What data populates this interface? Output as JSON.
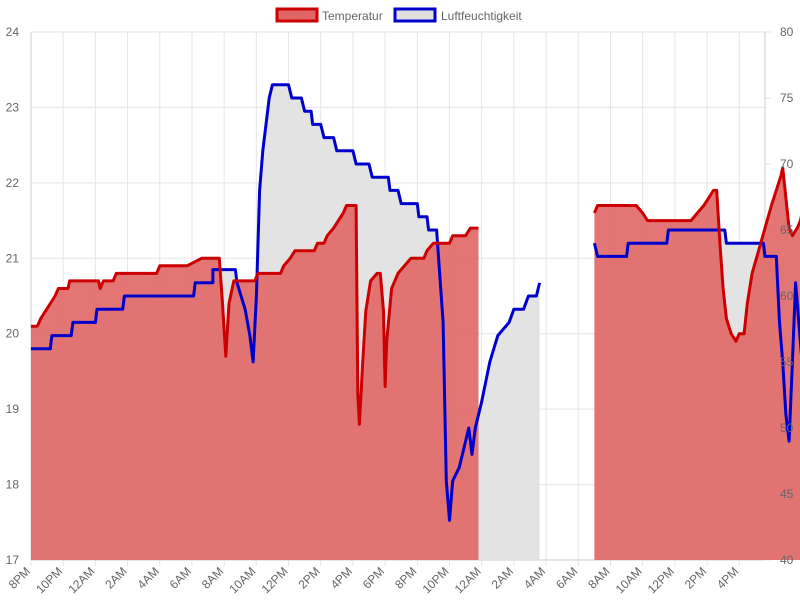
{
  "chart_data": {
    "type": "area",
    "legend_position": "top",
    "grid": true,
    "x_ticks": [
      "8PM",
      "10PM",
      "12AM",
      "2AM",
      "4AM",
      "6AM",
      "8AM",
      "10AM",
      "12PM",
      "2PM",
      "4PM",
      "6PM",
      "8PM",
      "10PM",
      "12AM",
      "2AM",
      "4AM",
      "6AM",
      "8AM",
      "10AM",
      "12PM",
      "2PM",
      "4PM"
    ],
    "x_range_hours": [
      20,
      65.9
    ],
    "y_left": {
      "min": 17,
      "max": 24,
      "ticks": [
        17,
        18,
        19,
        20,
        21,
        22,
        23,
        24
      ]
    },
    "y_right": {
      "min": 40,
      "max": 80,
      "ticks": [
        40,
        45,
        50,
        55,
        60,
        65,
        70,
        75,
        80
      ]
    },
    "series": [
      {
        "name": "Temperatur",
        "axis": "left",
        "color": "#cc0000",
        "fill": "#e06666",
        "segments": [
          [
            [
              20.0,
              20.1
            ],
            [
              20.4,
              20.1
            ],
            [
              20.6,
              20.2
            ],
            [
              20.9,
              20.3
            ],
            [
              21.2,
              20.4
            ],
            [
              21.5,
              20.5
            ],
            [
              21.7,
              20.6
            ],
            [
              22.3,
              20.6
            ],
            [
              22.4,
              20.7
            ],
            [
              24.2,
              20.7
            ],
            [
              24.3,
              20.6
            ],
            [
              24.5,
              20.7
            ],
            [
              25.1,
              20.7
            ],
            [
              25.3,
              20.8
            ],
            [
              27.8,
              20.8
            ],
            [
              28.0,
              20.9
            ],
            [
              29.7,
              20.9
            ],
            [
              30.6,
              21.0
            ],
            [
              31.7,
              21.0
            ],
            [
              31.9,
              20.4
            ],
            [
              32.1,
              19.7
            ],
            [
              32.3,
              20.4
            ],
            [
              32.6,
              20.7
            ],
            [
              33.9,
              20.7
            ],
            [
              34.1,
              20.8
            ],
            [
              35.5,
              20.8
            ],
            [
              35.7,
              20.9
            ],
            [
              36.1,
              21.0
            ],
            [
              36.4,
              21.1
            ],
            [
              37.6,
              21.1
            ],
            [
              37.8,
              21.2
            ],
            [
              38.2,
              21.2
            ],
            [
              38.4,
              21.3
            ],
            [
              38.8,
              21.4
            ],
            [
              39.1,
              21.5
            ],
            [
              39.4,
              21.6
            ],
            [
              39.6,
              21.7
            ],
            [
              40.2,
              21.7
            ],
            [
              40.3,
              19.2
            ],
            [
              40.4,
              18.8
            ],
            [
              40.6,
              19.6
            ],
            [
              40.8,
              20.3
            ],
            [
              41.1,
              20.7
            ],
            [
              41.5,
              20.8
            ],
            [
              41.7,
              20.8
            ],
            [
              41.9,
              20.3
            ],
            [
              42.0,
              19.3
            ],
            [
              42.1,
              19.9
            ],
            [
              42.4,
              20.6
            ],
            [
              42.8,
              20.8
            ],
            [
              43.2,
              20.9
            ],
            [
              43.6,
              21.0
            ],
            [
              44.4,
              21.0
            ],
            [
              44.6,
              21.1
            ],
            [
              45.0,
              21.2
            ],
            [
              46.0,
              21.2
            ],
            [
              46.2,
              21.3
            ],
            [
              47.0,
              21.3
            ],
            [
              47.3,
              21.4
            ],
            [
              47.8,
              21.4
            ]
          ],
          [
            [
              55.0,
              21.6
            ],
            [
              55.2,
              21.7
            ],
            [
              57.6,
              21.7
            ],
            [
              58.0,
              21.6
            ],
            [
              58.3,
              21.5
            ],
            [
              61.0,
              21.5
            ],
            [
              61.4,
              21.6
            ],
            [
              61.8,
              21.7
            ],
            [
              62.1,
              21.8
            ],
            [
              62.4,
              21.9
            ],
            [
              62.6,
              21.9
            ],
            [
              62.8,
              21.2
            ],
            [
              63.0,
              20.6
            ],
            [
              63.2,
              20.2
            ],
            [
              63.5,
              20.0
            ],
            [
              63.8,
              19.9
            ],
            [
              64.0,
              20.0
            ],
            [
              64.3,
              20.0
            ],
            [
              64.5,
              20.4
            ],
            [
              64.8,
              20.8
            ],
            [
              65.2,
              21.1
            ],
            [
              65.6,
              21.4
            ],
            [
              66.0,
              21.7
            ],
            [
              66.3,
              21.9
            ],
            [
              66.6,
              22.1
            ],
            [
              66.7,
              22.2
            ],
            [
              66.9,
              21.8
            ],
            [
              67.1,
              21.4
            ],
            [
              67.3,
              21.3
            ],
            [
              67.6,
              21.4
            ],
            [
              67.8,
              21.5
            ],
            [
              68.0,
              21.7
            ],
            [
              68.3,
              21.7
            ],
            [
              68.5,
              21.6
            ],
            [
              68.7,
              21.5
            ],
            [
              69.0,
              21.3
            ]
          ]
        ]
      },
      {
        "name": "Luftfeuchtigkeit",
        "axis": "right",
        "color": "#0000cc",
        "fill": "#e0e0e0",
        "segments": [
          [
            [
              20.0,
              56
            ],
            [
              21.2,
              56
            ],
            [
              21.3,
              57
            ],
            [
              22.5,
              57
            ],
            [
              22.6,
              58
            ],
            [
              24.0,
              58
            ],
            [
              24.1,
              59
            ],
            [
              25.7,
              59
            ],
            [
              25.8,
              60
            ],
            [
              30.1,
              60
            ],
            [
              30.2,
              61
            ],
            [
              31.3,
              61
            ],
            [
              31.3,
              62
            ],
            [
              32.7,
              62
            ],
            [
              32.8,
              61
            ],
            [
              33.3,
              59
            ],
            [
              33.6,
              57
            ],
            [
              33.8,
              55
            ],
            [
              34.0,
              60
            ],
            [
              34.2,
              68
            ],
            [
              34.4,
              71
            ],
            [
              34.6,
              73
            ],
            [
              34.8,
              75
            ],
            [
              35.0,
              76
            ],
            [
              36.0,
              76
            ],
            [
              36.2,
              75
            ],
            [
              36.8,
              75
            ],
            [
              37.0,
              74
            ],
            [
              37.4,
              74
            ],
            [
              37.5,
              73
            ],
            [
              38.0,
              73
            ],
            [
              38.2,
              72
            ],
            [
              38.8,
              72
            ],
            [
              39.0,
              71
            ],
            [
              40.0,
              71
            ],
            [
              40.2,
              70
            ],
            [
              41.0,
              70
            ],
            [
              41.2,
              69
            ],
            [
              42.2,
              69
            ],
            [
              42.3,
              68
            ],
            [
              42.8,
              68
            ],
            [
              43.0,
              67
            ],
            [
              44.0,
              67
            ],
            [
              44.1,
              66
            ],
            [
              44.6,
              66
            ],
            [
              44.7,
              65
            ],
            [
              45.2,
              65
            ],
            [
              45.6,
              58
            ],
            [
              45.8,
              46
            ],
            [
              46.0,
              43
            ],
            [
              46.2,
              46
            ],
            [
              46.6,
              47
            ],
            [
              47.0,
              49
            ],
            [
              47.2,
              50
            ],
            [
              47.4,
              48
            ],
            [
              47.6,
              50
            ],
            [
              48.0,
              52
            ],
            [
              48.5,
              55
            ],
            [
              49.0,
              57
            ],
            [
              49.7,
              58
            ],
            [
              50.0,
              59
            ],
            [
              50.6,
              59
            ],
            [
              50.9,
              60
            ],
            [
              51.4,
              60
            ],
            [
              51.6,
              61
            ]
          ],
          [
            [
              55.0,
              64
            ],
            [
              55.2,
              63
            ],
            [
              57.0,
              63
            ],
            [
              57.1,
              64
            ],
            [
              59.5,
              64
            ],
            [
              59.6,
              65
            ],
            [
              63.1,
              65
            ],
            [
              63.2,
              64
            ],
            [
              65.5,
              64
            ],
            [
              65.6,
              63
            ],
            [
              66.3,
              63
            ],
            [
              66.5,
              58
            ],
            [
              66.7,
              55
            ],
            [
              66.9,
              51
            ],
            [
              67.1,
              49
            ],
            [
              67.3,
              55
            ],
            [
              67.5,
              61
            ],
            [
              67.7,
              58
            ],
            [
              67.9,
              55
            ],
            [
              68.1,
              57
            ],
            [
              68.3,
              59
            ],
            [
              68.6,
              61
            ],
            [
              69.0,
              59
            ],
            [
              69.3,
              56
            ],
            [
              69.6,
              54
            ],
            [
              69.8,
              52
            ],
            [
              70.0,
              50
            ],
            [
              70.3,
              50
            ],
            [
              70.5,
              51
            ],
            [
              70.7,
              53
            ],
            [
              71.0,
              55
            ],
            [
              71.5,
              55
            ],
            [
              71.7,
              56
            ],
            [
              72.5,
              56
            ],
            [
              72.6,
              57
            ],
            [
              73.5,
              57
            ],
            [
              73.7,
              58
            ],
            [
              74.0,
              58
            ],
            [
              74.3,
              61
            ],
            [
              74.5,
              63
            ],
            [
              74.6,
              57
            ],
            [
              74.8,
              53
            ],
            [
              75.0,
              51
            ],
            [
              75.2,
              54
            ],
            [
              75.4,
              50
            ],
            [
              75.6,
              52
            ],
            [
              75.8,
              50
            ],
            [
              76.0,
              53
            ],
            [
              76.3,
              51
            ],
            [
              76.5,
              49
            ],
            [
              76.8,
              50
            ],
            [
              77.0,
              48
            ],
            [
              77.3,
              50
            ],
            [
              77.5,
              49
            ],
            [
              77.8,
              48
            ],
            [
              78.0,
              50
            ],
            [
              78.2,
              48
            ],
            [
              78.5,
              50
            ],
            [
              78.7,
              48
            ],
            [
              78.9,
              49
            ],
            [
              79.0,
              50
            ],
            [
              79.2,
              49
            ],
            [
              79.3,
              48
            ]
          ]
        ]
      }
    ]
  }
}
